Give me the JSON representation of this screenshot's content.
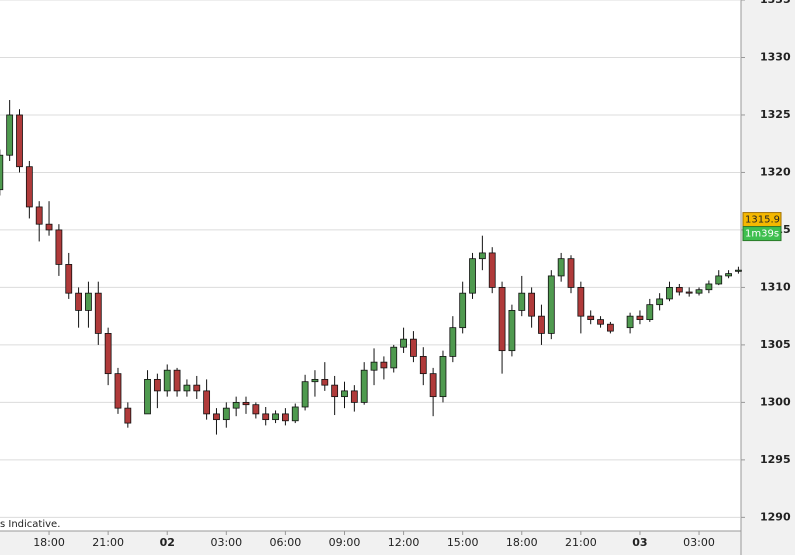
{
  "chart_data": {
    "type": "candlestick",
    "x": [
      15.5,
      16,
      16.5,
      17,
      17.5,
      18,
      18.5,
      19,
      19.5,
      20,
      20.5,
      21,
      21.5,
      22,
      23,
      23.5,
      24,
      24.5,
      25,
      25.5,
      26,
      26.5,
      27,
      27.5,
      28,
      28.5,
      29,
      29.5,
      30,
      30.5,
      31,
      31.5,
      32,
      32.5,
      33,
      33.5,
      34,
      34.5,
      35,
      35.5,
      36,
      36.5,
      37,
      37.5,
      38,
      38.5,
      39,
      39.5,
      40,
      40.5,
      41,
      41.5,
      42,
      42.5,
      43,
      43.5,
      44,
      44.5,
      45,
      45.5,
      46,
      46.5,
      47.5,
      48,
      48.5,
      49,
      49.5,
      50,
      50.5,
      51,
      51.5,
      52,
      52.5,
      53
    ],
    "open": [
      1318.5,
      1321.5,
      1325,
      1320.5,
      1317,
      1315.5,
      1315,
      1312,
      1309.5,
      1308,
      1309.5,
      1306,
      1302.5,
      1299.5,
      1299,
      1302,
      1301,
      1302.8,
      1301,
      1301.5,
      1301,
      1299,
      1298.5,
      1299.5,
      1300,
      1299.8,
      1299,
      1298.5,
      1299,
      1298.4,
      1299.6,
      1301.8,
      1302,
      1301.5,
      1300.5,
      1301,
      1300,
      1302.8,
      1303.5,
      1303,
      1304.8,
      1305.5,
      1304,
      1302.5,
      1300.5,
      1304,
      1306.5,
      1309.5,
      1312.5,
      1313,
      1310,
      1304.5,
      1308,
      1309.5,
      1307.5,
      1306,
      1311,
      1312.5,
      1310,
      1307.5,
      1307.2,
      1306.8,
      1306.5,
      1307.5,
      1307.2,
      1308.5,
      1309,
      1310,
      1309.6,
      1309.5,
      1309.8,
      1310.3,
      1311,
      1311.4
    ],
    "high": [
      1322,
      1326.3,
      1325.5,
      1321,
      1317.5,
      1317.5,
      1315.5,
      1313,
      1310,
      1310.5,
      1310.5,
      1306.5,
      1303,
      1300,
      1302.8,
      1302.5,
      1303.3,
      1303,
      1302,
      1302.3,
      1302,
      1299.5,
      1300,
      1300.5,
      1300.5,
      1300,
      1299.6,
      1299.3,
      1299.5,
      1299.9,
      1302.4,
      1302.8,
      1303.5,
      1302.3,
      1301.8,
      1301.5,
      1303.5,
      1304.7,
      1304,
      1305,
      1306.5,
      1306.2,
      1304.8,
      1303,
      1304.5,
      1307.5,
      1310.5,
      1313,
      1314.5,
      1313.5,
      1310.5,
      1308.5,
      1311,
      1310,
      1308.5,
      1311.5,
      1313,
      1312.8,
      1310.5,
      1308,
      1307.5,
      1307,
      1307.8,
      1308,
      1309,
      1309.5,
      1310.5,
      1310.3,
      1310,
      1310,
      1310.6,
      1311.5,
      1311.5,
      1311.8
    ],
    "low": [
      1318,
      1321,
      1320,
      1316,
      1314,
      1314.5,
      1311,
      1309,
      1306.5,
      1306.5,
      1305,
      1301.5,
      1299,
      1297.8,
      1299,
      1299.5,
      1300.5,
      1300.5,
      1300.5,
      1300.3,
      1298.5,
      1297.2,
      1297.8,
      1298.8,
      1299,
      1298.6,
      1298,
      1298.2,
      1298,
      1298.2,
      1299.3,
      1300.5,
      1301,
      1298.9,
      1299.5,
      1299.2,
      1299.8,
      1301.5,
      1302,
      1302.6,
      1304.3,
      1303.5,
      1301.5,
      1298.8,
      1300,
      1303.5,
      1306,
      1309,
      1311.5,
      1309.5,
      1302.5,
      1304,
      1307.5,
      1306.5,
      1305,
      1305.5,
      1310.5,
      1309.5,
      1306,
      1306.8,
      1306.5,
      1306,
      1306,
      1306.8,
      1307,
      1308,
      1308.8,
      1309.3,
      1309.2,
      1309.3,
      1309.5,
      1310.2,
      1310.8,
      1311.2
    ],
    "close": [
      1321.5,
      1325,
      1320.5,
      1317,
      1315.5,
      1315,
      1312,
      1309.5,
      1308,
      1309.5,
      1306,
      1302.5,
      1299.5,
      1298.2,
      1302,
      1301,
      1302.8,
      1301,
      1301.5,
      1301,
      1299,
      1298.5,
      1299.5,
      1300,
      1299.8,
      1299,
      1298.5,
      1299,
      1298.4,
      1299.6,
      1301.8,
      1302,
      1301.5,
      1300.5,
      1301,
      1300,
      1302.8,
      1303.5,
      1303,
      1304.8,
      1305.5,
      1304,
      1302.5,
      1300.5,
      1304,
      1306.5,
      1309.5,
      1312.5,
      1313,
      1310,
      1304.5,
      1308,
      1309.5,
      1307.5,
      1306,
      1311,
      1312.5,
      1310,
      1307.5,
      1307.2,
      1306.8,
      1306.2,
      1307.5,
      1307.2,
      1308.5,
      1309,
      1310,
      1309.6,
      1309.5,
      1309.8,
      1310.3,
      1311,
      1311.2,
      1311.5
    ],
    "up_color": "#4f9a4f",
    "down_color": "#b03a3a",
    "xlim": [
      15.51,
      53.08
    ],
    "ylim": [
      1288.9,
      1335
    ],
    "yticks": [
      1290,
      1295,
      1300,
      1305,
      1310,
      1315,
      1320,
      1325,
      1330,
      1335
    ],
    "xticks": [
      {
        "value": 18,
        "label": "18:00"
      },
      {
        "value": 21,
        "label": "21:00"
      },
      {
        "value": 24,
        "label": "02"
      },
      {
        "value": 27,
        "label": "03:00"
      },
      {
        "value": 30,
        "label": "06:00"
      },
      {
        "value": 33,
        "label": "09:00"
      },
      {
        "value": 36,
        "label": "12:00"
      },
      {
        "value": 39,
        "label": "15:00"
      },
      {
        "value": 42,
        "label": "18:00"
      },
      {
        "value": 45,
        "label": "21:00"
      },
      {
        "value": 48,
        "label": "03"
      },
      {
        "value": 51,
        "label": "03:00"
      }
    ],
    "grid": true,
    "current_price": 1315.9,
    "countdown": "1m39s",
    "footnote": "s Indicative."
  }
}
